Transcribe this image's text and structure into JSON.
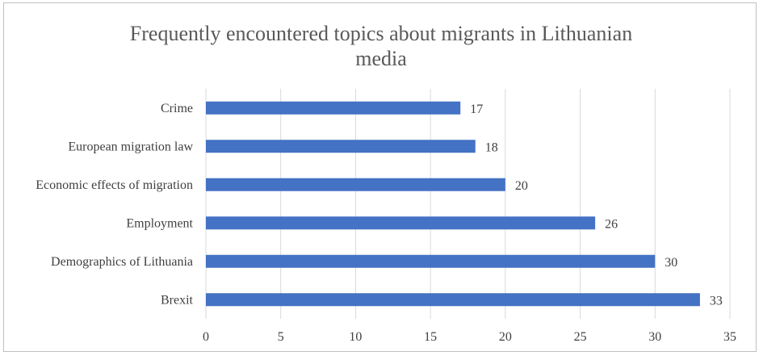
{
  "chart_data": {
    "type": "bar",
    "orientation": "horizontal",
    "title": "Frequently encountered topics about migrants in Lithuanian media",
    "title_lines": [
      "Frequently encountered topics about migrants in Lithuanian",
      "media"
    ],
    "categories": [
      "Crime",
      "European migration law",
      "Economic effects of migration",
      "Employment",
      "Demographics of Lithuania",
      "Brexit"
    ],
    "values": [
      17,
      18,
      20,
      26,
      30,
      33
    ],
    "xlim": [
      0,
      35
    ],
    "xticks": [
      0,
      5,
      10,
      15,
      20,
      25,
      30,
      35
    ],
    "grid": true,
    "legend": "none",
    "data_labels": true,
    "bar_color": "#4472c4",
    "grid_color": "#d9d9d9"
  }
}
